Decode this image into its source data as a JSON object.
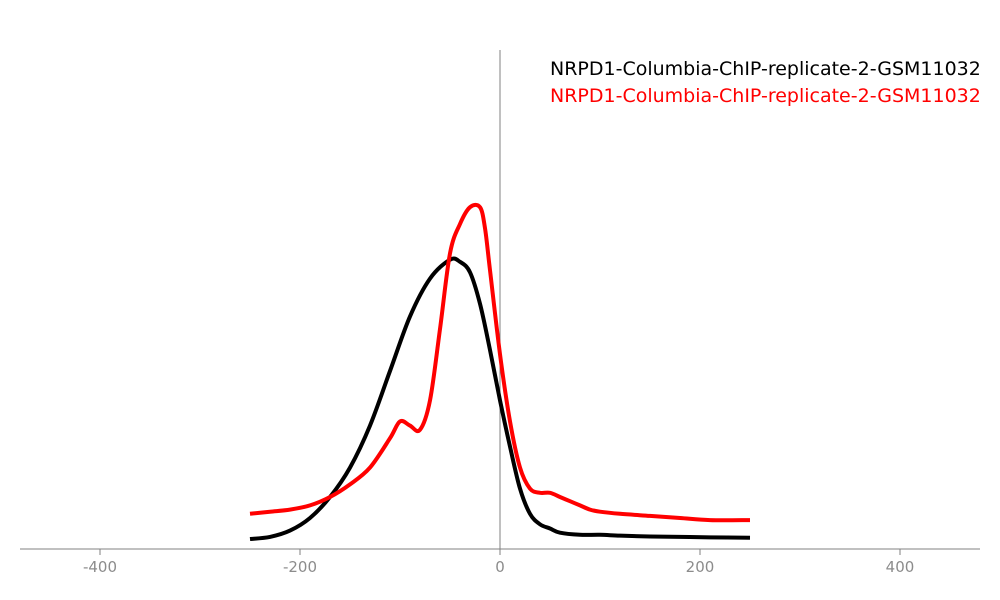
{
  "chart_data": {
    "type": "line",
    "xlim": [
      -480,
      480
    ],
    "x_ticks": [
      -400,
      -200,
      0,
      200,
      400
    ],
    "x_tick_labels": [
      "-400",
      "-200",
      "0",
      "200",
      "400"
    ],
    "grid": false,
    "legend_position": "top-right",
    "series": [
      {
        "name": "NRPD1-Columbia-ChIP-replicate-2-GSM11032",
        "color": "#000000",
        "x": [
          -250,
          -230,
          -210,
          -190,
          -170,
          -150,
          -130,
          -110,
          -90,
          -70,
          -50,
          -40,
          -30,
          -20,
          -10,
          0,
          10,
          20,
          30,
          40,
          50,
          60,
          80,
          100,
          120,
          150,
          180,
          210,
          250
        ],
        "y": [
          0.0,
          0.005,
          0.02,
          0.05,
          0.1,
          0.17,
          0.27,
          0.4,
          0.53,
          0.62,
          0.665,
          0.66,
          0.635,
          0.56,
          0.45,
          0.33,
          0.22,
          0.12,
          0.06,
          0.035,
          0.025,
          0.015,
          0.01,
          0.01,
          0.008,
          0.006,
          0.005,
          0.004,
          0.003
        ]
      },
      {
        "name": "NRPD1-Columbia-ChIP-replicate-2-GSM11032",
        "color": "#ff0000",
        "x": [
          -250,
          -230,
          -210,
          -190,
          -170,
          -150,
          -130,
          -110,
          -100,
          -90,
          -80,
          -70,
          -60,
          -50,
          -40,
          -30,
          -20,
          -15,
          -10,
          0,
          10,
          20,
          30,
          40,
          50,
          60,
          70,
          80,
          90,
          100,
          120,
          150,
          180,
          210,
          250
        ],
        "y": [
          0.06,
          0.065,
          0.07,
          0.08,
          0.1,
          0.13,
          0.17,
          0.24,
          0.28,
          0.27,
          0.26,
          0.33,
          0.5,
          0.68,
          0.75,
          0.79,
          0.79,
          0.74,
          0.64,
          0.44,
          0.28,
          0.17,
          0.12,
          0.11,
          0.11,
          0.1,
          0.09,
          0.08,
          0.07,
          0.065,
          0.06,
          0.055,
          0.05,
          0.045,
          0.045
        ]
      }
    ]
  }
}
